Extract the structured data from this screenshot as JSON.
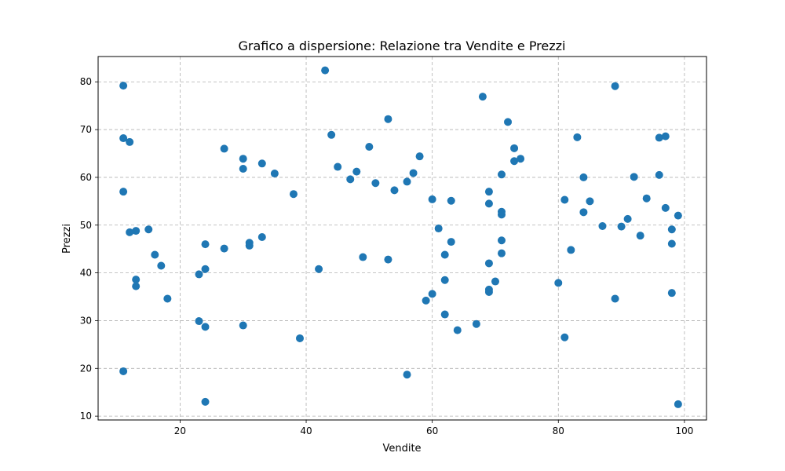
{
  "chart_data": {
    "type": "scatter",
    "title": "Grafico a dispersione: Relazione tra Vendite e Prezzi",
    "xlabel": "Vendite",
    "ylabel": "Prezzi",
    "xlim": [
      7,
      103.5
    ],
    "ylim": [
      9.2,
      85.3
    ],
    "xticks": [
      20,
      40,
      60,
      80,
      100
    ],
    "yticks": [
      10,
      20,
      30,
      40,
      50,
      60,
      70,
      80
    ],
    "grid": true,
    "point_color": "#1f77b4",
    "points": [
      {
        "x": 11,
        "y": 79.2
      },
      {
        "x": 11,
        "y": 68.2
      },
      {
        "x": 12,
        "y": 67.4
      },
      {
        "x": 11,
        "y": 57.0
      },
      {
        "x": 11,
        "y": 19.4
      },
      {
        "x": 12,
        "y": 48.5
      },
      {
        "x": 13,
        "y": 48.8
      },
      {
        "x": 15,
        "y": 49.1
      },
      {
        "x": 13,
        "y": 38.6
      },
      {
        "x": 13,
        "y": 37.2
      },
      {
        "x": 16,
        "y": 43.8
      },
      {
        "x": 17,
        "y": 41.5
      },
      {
        "x": 18,
        "y": 34.6
      },
      {
        "x": 23,
        "y": 39.7
      },
      {
        "x": 24,
        "y": 40.8
      },
      {
        "x": 24,
        "y": 46.0
      },
      {
        "x": 23,
        "y": 29.9
      },
      {
        "x": 24,
        "y": 28.7
      },
      {
        "x": 24,
        "y": 13.0
      },
      {
        "x": 27,
        "y": 66.0
      },
      {
        "x": 27,
        "y": 45.1
      },
      {
        "x": 30,
        "y": 63.9
      },
      {
        "x": 30,
        "y": 61.8
      },
      {
        "x": 30,
        "y": 29.0
      },
      {
        "x": 31,
        "y": 46.3
      },
      {
        "x": 31,
        "y": 45.7
      },
      {
        "x": 33,
        "y": 62.9
      },
      {
        "x": 33,
        "y": 47.5
      },
      {
        "x": 35,
        "y": 60.8
      },
      {
        "x": 38,
        "y": 56.5
      },
      {
        "x": 39,
        "y": 26.3
      },
      {
        "x": 42,
        "y": 40.8
      },
      {
        "x": 43,
        "y": 82.4
      },
      {
        "x": 44,
        "y": 68.9
      },
      {
        "x": 45,
        "y": 62.2
      },
      {
        "x": 47,
        "y": 59.6
      },
      {
        "x": 48,
        "y": 61.2
      },
      {
        "x": 49,
        "y": 43.3
      },
      {
        "x": 50,
        "y": 66.4
      },
      {
        "x": 51,
        "y": 58.8
      },
      {
        "x": 53,
        "y": 72.2
      },
      {
        "x": 53,
        "y": 42.8
      },
      {
        "x": 54,
        "y": 57.3
      },
      {
        "x": 56,
        "y": 59.1
      },
      {
        "x": 56,
        "y": 18.7
      },
      {
        "x": 57,
        "y": 60.9
      },
      {
        "x": 58,
        "y": 64.4
      },
      {
        "x": 59,
        "y": 34.2
      },
      {
        "x": 60,
        "y": 55.4
      },
      {
        "x": 60,
        "y": 35.6
      },
      {
        "x": 61,
        "y": 49.3
      },
      {
        "x": 62,
        "y": 43.8
      },
      {
        "x": 62,
        "y": 38.5
      },
      {
        "x": 62,
        "y": 31.3
      },
      {
        "x": 63,
        "y": 55.1
      },
      {
        "x": 63,
        "y": 46.5
      },
      {
        "x": 64,
        "y": 28.0
      },
      {
        "x": 67,
        "y": 29.3
      },
      {
        "x": 68,
        "y": 76.9
      },
      {
        "x": 69,
        "y": 57.0
      },
      {
        "x": 69,
        "y": 54.5
      },
      {
        "x": 69,
        "y": 42.0
      },
      {
        "x": 69,
        "y": 36.5
      },
      {
        "x": 69,
        "y": 36.0
      },
      {
        "x": 70,
        "y": 38.2
      },
      {
        "x": 71,
        "y": 60.6
      },
      {
        "x": 71,
        "y": 52.8
      },
      {
        "x": 71,
        "y": 52.2
      },
      {
        "x": 71,
        "y": 46.8
      },
      {
        "x": 71,
        "y": 44.1
      },
      {
        "x": 72,
        "y": 71.6
      },
      {
        "x": 73,
        "y": 66.1
      },
      {
        "x": 73,
        "y": 63.4
      },
      {
        "x": 74,
        "y": 63.9
      },
      {
        "x": 80,
        "y": 37.9
      },
      {
        "x": 81,
        "y": 55.3
      },
      {
        "x": 81,
        "y": 26.5
      },
      {
        "x": 82,
        "y": 44.8
      },
      {
        "x": 83,
        "y": 68.4
      },
      {
        "x": 84,
        "y": 60.0
      },
      {
        "x": 84,
        "y": 52.7
      },
      {
        "x": 85,
        "y": 55.0
      },
      {
        "x": 87,
        "y": 49.8
      },
      {
        "x": 89,
        "y": 79.1
      },
      {
        "x": 89,
        "y": 34.6
      },
      {
        "x": 90,
        "y": 49.7
      },
      {
        "x": 91,
        "y": 51.3
      },
      {
        "x": 92,
        "y": 60.1
      },
      {
        "x": 93,
        "y": 47.8
      },
      {
        "x": 94,
        "y": 55.6
      },
      {
        "x": 96,
        "y": 68.3
      },
      {
        "x": 96,
        "y": 60.5
      },
      {
        "x": 97,
        "y": 68.6
      },
      {
        "x": 97,
        "y": 53.6
      },
      {
        "x": 98,
        "y": 49.1
      },
      {
        "x": 98,
        "y": 46.1
      },
      {
        "x": 98,
        "y": 35.8
      },
      {
        "x": 99,
        "y": 52.0
      },
      {
        "x": 99,
        "y": 12.5
      }
    ]
  }
}
